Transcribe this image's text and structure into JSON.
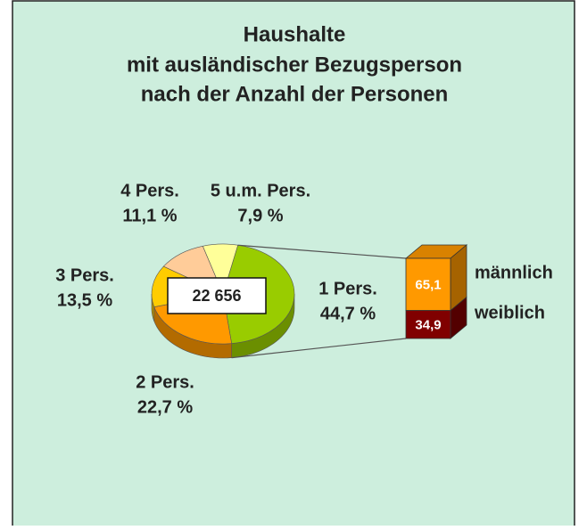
{
  "chart_data": [
    {
      "type": "pie",
      "title": [
        "Haushalte",
        "mit ausländischer Bezugsperson",
        "nach der Anzahl der Personen"
      ],
      "total": {
        "value": 22656,
        "label": "22 656"
      },
      "categories": [
        "1 Pers.",
        "2 Pers.",
        "3 Pers.",
        "4 Pers.",
        "5 u.m. Pers."
      ],
      "values": [
        44.7,
        22.7,
        13.5,
        11.1,
        7.9
      ],
      "value_labels": [
        "44,7 %",
        "22,7 %",
        "13,5 %",
        "11,1 %",
        "7,9 %"
      ],
      "colors": [
        "#99cc00",
        "#ff9900",
        "#ffcc00",
        "#ffcc99",
        "#ffff99"
      ]
    },
    {
      "type": "bar",
      "series": [
        {
          "name": "männlich",
          "color": "#ff9900",
          "values": [
            65.1
          ],
          "value_labels": [
            "65,1"
          ]
        },
        {
          "name": "weiblich",
          "color": "#800000",
          "values": [
            34.9
          ],
          "value_labels": [
            "34,9"
          ]
        }
      ]
    }
  ]
}
